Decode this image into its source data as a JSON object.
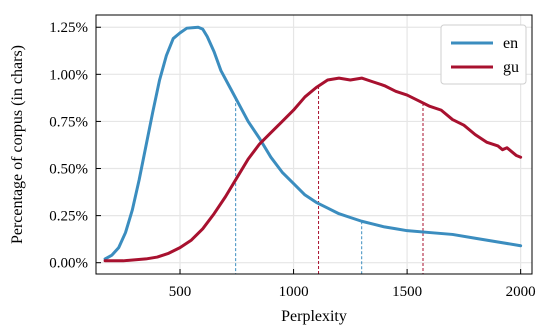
{
  "chart_data": {
    "type": "line",
    "xlabel": "Perplexity",
    "ylabel": "Percentage of corpus (in chars)",
    "xlim": [
      130,
      2050
    ],
    "ylim": [
      -0.0006,
      0.01315
    ],
    "x_ticks": [
      500,
      1000,
      1500,
      2000
    ],
    "x_tick_labels": [
      "500",
      "1000",
      "1500",
      "2000"
    ],
    "y_ticks": [
      0,
      0.0025,
      0.005,
      0.0075,
      0.01,
      0.0125
    ],
    "y_tick_labels": [
      "0.00%",
      "0.25%",
      "0.50%",
      "0.75%",
      "1.00%",
      "1.25%"
    ],
    "grid": true,
    "legend_position": "top-right",
    "series": [
      {
        "name": "en",
        "color": "#3b8dbf",
        "x": [
          170,
          200,
          230,
          260,
          290,
          320,
          350,
          380,
          410,
          440,
          470,
          500,
          530,
          560,
          580,
          600,
          620,
          650,
          680,
          720,
          760,
          800,
          850,
          900,
          950,
          1000,
          1050,
          1100,
          1150,
          1200,
          1250,
          1300,
          1350,
          1400,
          1450,
          1500,
          1600,
          1700,
          1800,
          1900,
          2000
        ],
        "y": [
          0.0002,
          0.0004,
          0.0008,
          0.0016,
          0.0028,
          0.0044,
          0.0062,
          0.008,
          0.0097,
          0.011,
          0.0119,
          0.0122,
          0.01245,
          0.01248,
          0.0125,
          0.0124,
          0.012,
          0.0112,
          0.0102,
          0.0093,
          0.0084,
          0.0075,
          0.0066,
          0.0056,
          0.0048,
          0.0042,
          0.0036,
          0.0032,
          0.0029,
          0.0026,
          0.0024,
          0.0022,
          0.00205,
          0.0019,
          0.0018,
          0.0017,
          0.0016,
          0.0015,
          0.0013,
          0.0011,
          0.0009
        ]
      },
      {
        "name": "gu",
        "color": "#a8112f",
        "x": [
          170,
          250,
          350,
          400,
          450,
          500,
          550,
          600,
          650,
          700,
          750,
          800,
          850,
          900,
          950,
          1000,
          1050,
          1100,
          1150,
          1200,
          1250,
          1300,
          1350,
          1400,
          1450,
          1500,
          1550,
          1600,
          1650,
          1700,
          1750,
          1800,
          1850,
          1900,
          1920,
          1940,
          1960,
          1980,
          2000
        ],
        "y": [
          0.0001,
          0.0001,
          0.0002,
          0.0003,
          0.0005,
          0.0008,
          0.0012,
          0.0018,
          0.0026,
          0.0035,
          0.0045,
          0.0055,
          0.0063,
          0.0069,
          0.0075,
          0.0081,
          0.0088,
          0.0093,
          0.0097,
          0.0098,
          0.0097,
          0.0098,
          0.0096,
          0.0094,
          0.0091,
          0.0089,
          0.0086,
          0.0083,
          0.0081,
          0.0076,
          0.0073,
          0.0068,
          0.0064,
          0.0062,
          0.006,
          0.0061,
          0.0059,
          0.0057,
          0.0056
        ]
      }
    ],
    "markers": [
      {
        "x": 745,
        "series": "en",
        "color": "#3b8dbf"
      },
      {
        "x": 1300,
        "series": "en",
        "color": "#3b8dbf"
      },
      {
        "x": 1110,
        "series": "gu",
        "color": "#a8112f"
      },
      {
        "x": 1570,
        "series": "gu",
        "color": "#a8112f"
      }
    ]
  }
}
